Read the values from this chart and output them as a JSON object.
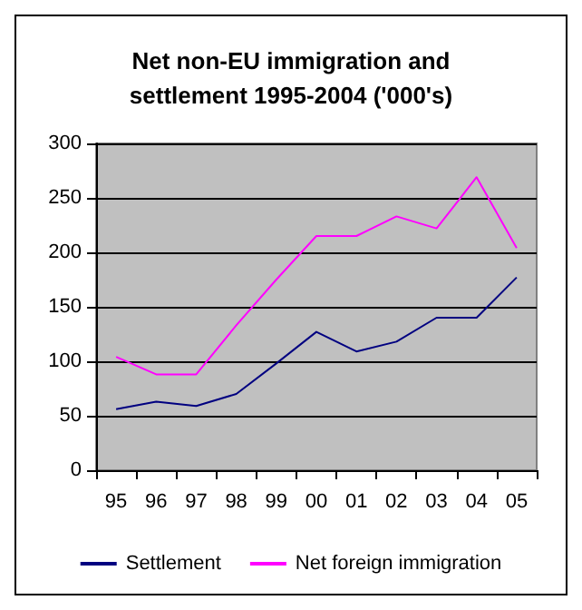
{
  "chart_data": {
    "type": "line",
    "title": "Net non-EU immigration and\nsettlement 1995-2004 ('000's)",
    "categories": [
      "95",
      "96",
      "97",
      "98",
      "99",
      "00",
      "01",
      "02",
      "03",
      "04",
      "05"
    ],
    "series": [
      {
        "name": "Settlement",
        "color": "#000080",
        "values": [
          56,
          63,
          59,
          70,
          98,
          127,
          109,
          118,
          140,
          140,
          177
        ]
      },
      {
        "name": "Net foreign immigration",
        "color": "#ff00ff",
        "values": [
          104,
          88,
          88,
          133,
          175,
          215,
          215,
          233,
          222,
          269,
          204
        ]
      }
    ],
    "ylim": [
      0,
      300
    ],
    "yticks": [
      0,
      50,
      100,
      150,
      200,
      250,
      300
    ],
    "grid": "y",
    "legend": "bottom",
    "marker": "none",
    "line_style": "solid"
  }
}
